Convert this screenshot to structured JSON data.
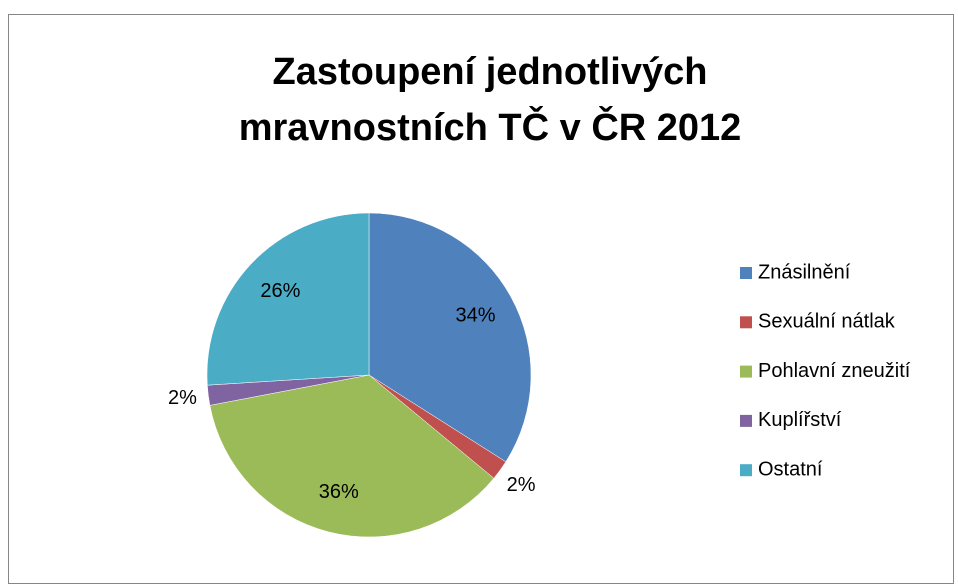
{
  "chart_data": {
    "type": "pie",
    "title": "Zastoupení jednotlivých mravnostních TČ v ČR 2012",
    "categories": [
      "Znásilnění",
      "Sexuální nátlak",
      "Pohlavní zneužití",
      "Kuplířství",
      "Ostatní"
    ],
    "values": [
      34,
      2,
      36,
      2,
      26
    ],
    "value_labels": [
      "34%",
      "2%",
      "36%",
      "2%",
      "26%"
    ],
    "colors": [
      "#4f81bd",
      "#c0504d",
      "#9bbb59",
      "#8064a2",
      "#4bacc6"
    ],
    "legend": "right"
  }
}
